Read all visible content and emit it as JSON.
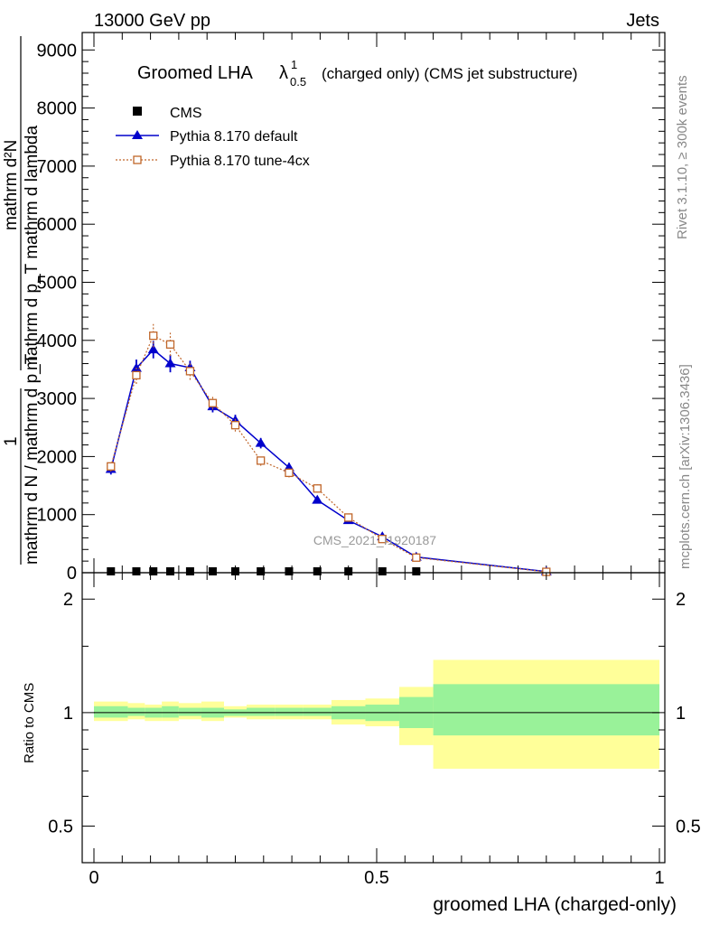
{
  "header": {
    "beam": "13000 GeV pp",
    "process": "Jets"
  },
  "side_labels": {
    "rivet": "Rivet 3.1.10, ≥ 300k events",
    "mcplots": "mcplots.cern.ch [arXiv:1306.3436]"
  },
  "watermark": "CMS_2021_I1920187",
  "colors": {
    "data": "#000000",
    "pythia_default": "#0000cc",
    "pythia_tune": "#c0662a",
    "band_inner": "#99f299",
    "band_outer": "#ffff99"
  },
  "chart_data": [
    {
      "type": "line",
      "title": "Groomed LHA",
      "title_symbol": "λ",
      "title_sup": "1",
      "title_sub": "0.5",
      "title_suffix": "(charged only) (CMS jet substructure)",
      "ylabel_top": "mathrm d²N",
      "ylabel_bottom": "mathrm d p_T mathrm d lambda",
      "ylabel_prefix_num": "1",
      "ylabel_prefix_den": "mathrm d N / mathrm d p_T",
      "xlim": [
        0,
        1
      ],
      "ylim": [
        0,
        9300
      ],
      "yticks": [
        "0",
        "1000",
        "2000",
        "3000",
        "4000",
        "5000",
        "6000",
        "7000",
        "8000",
        "9000"
      ],
      "ytick_values": [
        0,
        1000,
        2000,
        3000,
        4000,
        5000,
        6000,
        7000,
        8000,
        9000
      ],
      "legend_position": "top-left",
      "series": [
        {
          "name": "CMS",
          "marker": "square",
          "x": [
            0.03,
            0.075,
            0.105,
            0.135,
            0.17,
            0.21,
            0.25,
            0.295,
            0.345,
            0.395,
            0.45,
            0.51,
            0.57
          ],
          "values": [
            0,
            0,
            0,
            0,
            0,
            0,
            0,
            0,
            0,
            0,
            0,
            0,
            0
          ]
        },
        {
          "name": "Pythia 8.170 default",
          "marker": "triangle",
          "x": [
            0.03,
            0.075,
            0.105,
            0.135,
            0.17,
            0.21,
            0.25,
            0.295,
            0.345,
            0.395,
            0.45,
            0.51,
            0.57,
            0.8
          ],
          "values": [
            1780,
            3520,
            3840,
            3600,
            3530,
            2860,
            2620,
            2230,
            1810,
            1250,
            900,
            620,
            270,
            20
          ],
          "errors": [
            90,
            150,
            150,
            150,
            120,
            100,
            100,
            90,
            80,
            60,
            50,
            40,
            30,
            10
          ]
        },
        {
          "name": "Pythia 8.170 tune-4cx",
          "marker": "open-square",
          "x": [
            0.03,
            0.075,
            0.105,
            0.135,
            0.17,
            0.21,
            0.25,
            0.295,
            0.345,
            0.395,
            0.45,
            0.51,
            0.57,
            0.8
          ],
          "values": [
            1830,
            3400,
            4080,
            3930,
            3470,
            2920,
            2540,
            1930,
            1720,
            1450,
            950,
            580,
            260,
            15
          ],
          "errors": [
            90,
            150,
            200,
            200,
            150,
            110,
            110,
            90,
            80,
            70,
            50,
            40,
            30,
            10
          ]
        }
      ]
    },
    {
      "type": "area",
      "ylabel": "Ratio to CMS",
      "xlabel": "groomed LHA (charged-only)",
      "xlim": [
        0,
        1
      ],
      "ylim": [
        0.4,
        2.35
      ],
      "log_y": true,
      "xticks": [
        "0",
        "0.5",
        "1"
      ],
      "xtick_values": [
        0,
        0.5,
        1
      ],
      "yticks": [
        "0.5",
        "1",
        "2"
      ],
      "ytick_values": [
        0.5,
        1,
        2
      ],
      "reference_line": 1,
      "bins": [
        0,
        0.06,
        0.09,
        0.12,
        0.15,
        0.19,
        0.23,
        0.27,
        0.32,
        0.37,
        0.42,
        0.48,
        0.54,
        0.6,
        1.0
      ],
      "outer_band": [
        [
          0.95,
          1.07
        ],
        [
          0.96,
          1.06
        ],
        [
          0.95,
          1.05
        ],
        [
          0.95,
          1.07
        ],
        [
          0.96,
          1.06
        ],
        [
          0.95,
          1.07
        ],
        [
          0.97,
          1.04
        ],
        [
          0.96,
          1.05
        ],
        [
          0.96,
          1.05
        ],
        [
          0.96,
          1.05
        ],
        [
          0.93,
          1.08
        ],
        [
          0.92,
          1.09
        ],
        [
          0.82,
          1.17
        ],
        [
          0.71,
          1.38
        ]
      ],
      "inner_band": [
        [
          0.97,
          1.04
        ],
        [
          0.98,
          1.03
        ],
        [
          0.97,
          1.03
        ],
        [
          0.97,
          1.04
        ],
        [
          0.98,
          1.03
        ],
        [
          0.97,
          1.03
        ],
        [
          0.98,
          1.02
        ],
        [
          0.98,
          1.03
        ],
        [
          0.98,
          1.03
        ],
        [
          0.98,
          1.03
        ],
        [
          0.96,
          1.04
        ],
        [
          0.95,
          1.05
        ],
        [
          0.91,
          1.1
        ],
        [
          0.87,
          1.19
        ]
      ]
    }
  ]
}
